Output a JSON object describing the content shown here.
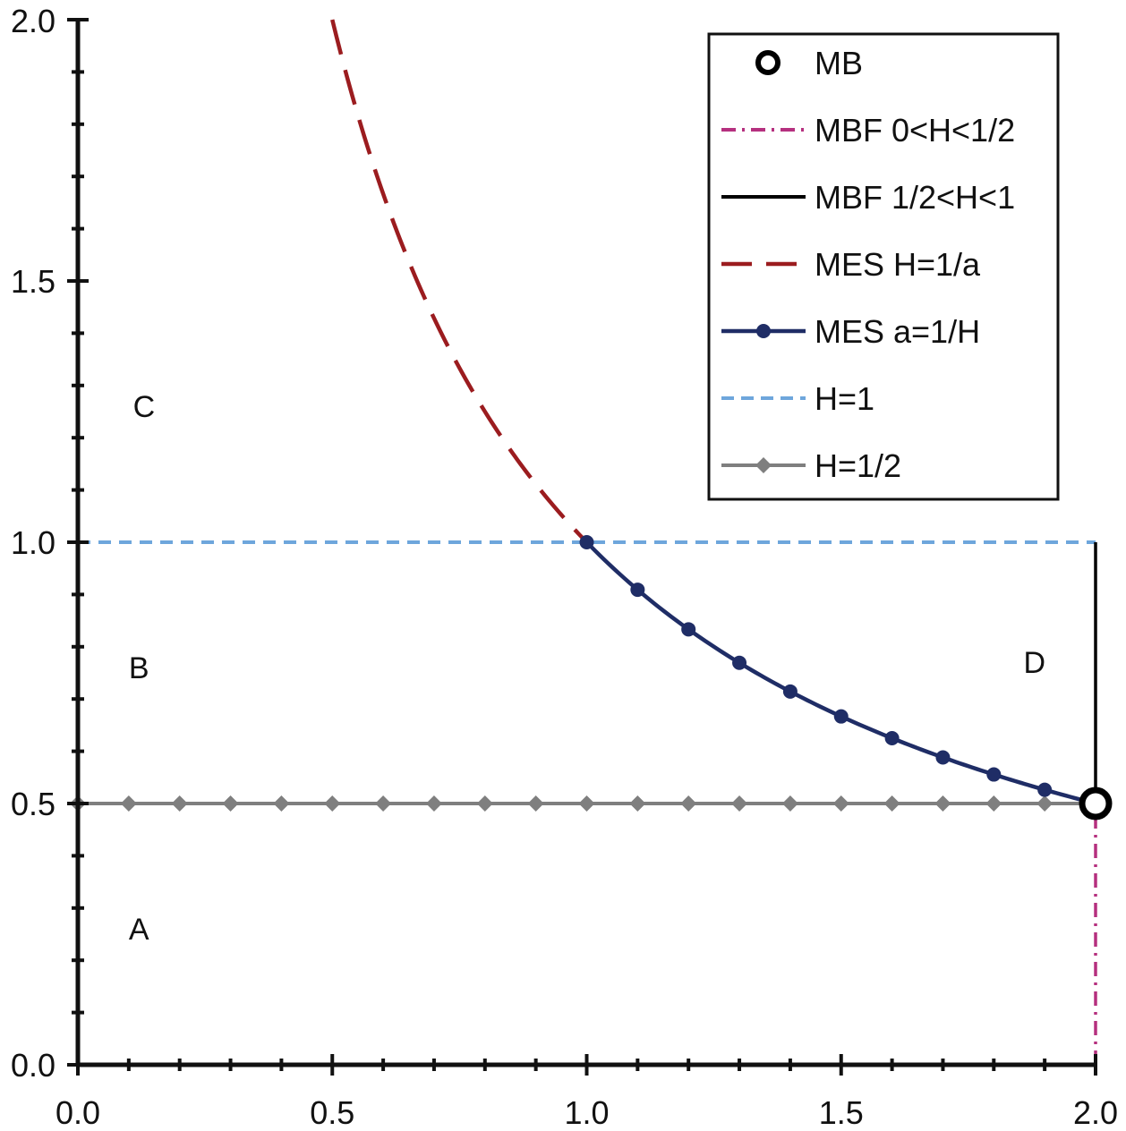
{
  "chart_data": {
    "type": "line",
    "xlim": [
      0,
      2
    ],
    "ylim": [
      0,
      2
    ],
    "x_ticks": [
      "0.0",
      "0.5",
      "1.0",
      "1.5",
      "2.0"
    ],
    "y_ticks": [
      "0.0",
      "0.5",
      "1.0",
      "1.5",
      "2.0"
    ],
    "x_ticks_values": [
      0,
      0.5,
      1.0,
      1.5,
      2.0
    ],
    "y_ticks_values": [
      0,
      0.5,
      1.0,
      1.5,
      2.0
    ],
    "minor_tick_step": 0.1,
    "grid": false,
    "legend_position": "top-right",
    "regions": [
      {
        "label": "A",
        "x": 0.12,
        "y": 0.24
      },
      {
        "label": "B",
        "x": 0.12,
        "y": 0.74
      },
      {
        "label": "C",
        "x": 0.13,
        "y": 1.24
      },
      {
        "label": "D",
        "x": 1.88,
        "y": 0.75
      }
    ],
    "series": [
      {
        "name": "MB",
        "color": "#000000",
        "style": "open-circle",
        "points": [
          [
            2.0,
            0.5
          ]
        ]
      },
      {
        "name": "MBF 0<H<1/2",
        "color": "#b5307f",
        "style": "dash-dot",
        "points": [
          [
            2.0,
            0.0
          ],
          [
            2.0,
            0.5
          ]
        ]
      },
      {
        "name": "MBF 1/2<H<1",
        "color": "#000000",
        "style": "solid",
        "points": [
          [
            2.0,
            0.5
          ],
          [
            2.0,
            1.0
          ]
        ]
      },
      {
        "name": "MES H=1/a",
        "color": "#9b1c1f",
        "style": "long-dash",
        "function": "1/x",
        "x_range": [
          0.5,
          1.0
        ]
      },
      {
        "name": "MES a=1/H",
        "color": "#1f2d66",
        "style": "solid-marker-circle",
        "function": "1/x",
        "x_range": [
          1.0,
          2.0
        ],
        "markers_x": [
          1.0,
          1.1,
          1.2,
          1.3,
          1.4,
          1.5,
          1.6,
          1.7,
          1.8,
          1.9
        ]
      },
      {
        "name": "H=1",
        "color": "#6ea6dc",
        "style": "short-dash",
        "points": [
          [
            0,
            1.0
          ],
          [
            2.0,
            1.0
          ]
        ]
      },
      {
        "name": "H=1/2",
        "color": "#7f7f7f",
        "style": "solid-marker-diamond",
        "points": [
          [
            0,
            0.5
          ],
          [
            2.0,
            0.5
          ]
        ],
        "markers_x": [
          0,
          0.1,
          0.2,
          0.3,
          0.4,
          0.5,
          0.6,
          0.7,
          0.8,
          0.9,
          1.0,
          1.1,
          1.2,
          1.3,
          1.4,
          1.5,
          1.6,
          1.7,
          1.8,
          1.9
        ]
      }
    ]
  }
}
